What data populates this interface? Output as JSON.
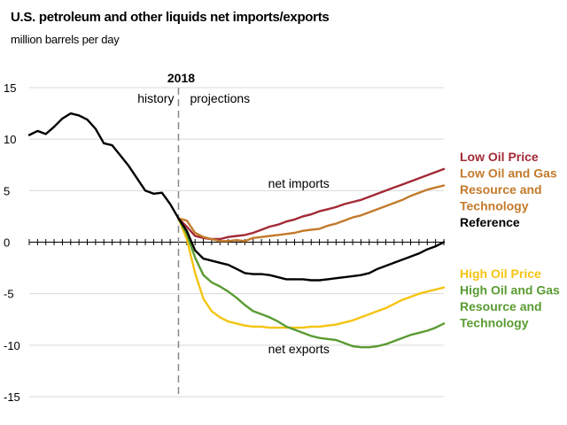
{
  "chart_data": {
    "type": "line",
    "title": "U.S. petroleum and other liquids net imports/exports",
    "subtitle": "million barrels per day",
    "xlabel": "",
    "ylabel": "",
    "xlim": [
      2000,
      2050
    ],
    "ylim": [
      -15,
      15
    ],
    "yticks": [
      15,
      10,
      5,
      0,
      -5,
      -10,
      -15
    ],
    "grid": true,
    "divider": {
      "year": 2018,
      "label": "2018",
      "left_label": "history",
      "right_label": "projections"
    },
    "annotations": [
      {
        "text": "net imports",
        "x": 2032.5,
        "y": 5.3
      },
      {
        "text": "net exports",
        "x": 2032.5,
        "y": -10.8
      }
    ],
    "legend_groups": [
      {
        "entries": [
          "Low Oil Price",
          "Low Oil and Gas Resource and Technology",
          "Reference"
        ]
      },
      {
        "entries": [
          "High Oil Price",
          "High Oil and Gas Resource and Technology"
        ]
      }
    ],
    "series": [
      {
        "name": "Reference",
        "legend": [
          "Reference"
        ],
        "color": "#000000",
        "x": [
          2000,
          2001,
          2002,
          2003,
          2004,
          2005,
          2006,
          2007,
          2008,
          2009,
          2010,
          2011,
          2012,
          2013,
          2014,
          2015,
          2016,
          2017,
          2018,
          2019,
          2020,
          2021,
          2022,
          2023,
          2024,
          2025,
          2026,
          2027,
          2028,
          2029,
          2030,
          2031,
          2032,
          2033,
          2034,
          2035,
          2036,
          2037,
          2038,
          2039,
          2040,
          2041,
          2042,
          2043,
          2044,
          2045,
          2046,
          2047,
          2048,
          2049,
          2050
        ],
        "values": [
          10.4,
          10.8,
          10.5,
          11.2,
          12.0,
          12.5,
          12.3,
          11.9,
          11.0,
          9.6,
          9.4,
          8.4,
          7.4,
          6.2,
          5.0,
          4.7,
          4.8,
          3.7,
          2.3,
          1.1,
          -0.8,
          -1.6,
          -1.8,
          -2.0,
          -2.2,
          -2.6,
          -3.0,
          -3.1,
          -3.1,
          -3.2,
          -3.4,
          -3.6,
          -3.6,
          -3.6,
          -3.7,
          -3.7,
          -3.6,
          -3.5,
          -3.4,
          -3.3,
          -3.2,
          -3.0,
          -2.6,
          -2.3,
          -2.0,
          -1.7,
          -1.4,
          -1.1,
          -0.7,
          -0.4,
          0.0
        ]
      },
      {
        "name": "Low Oil Price",
        "legend": [
          "Low Oil Price"
        ],
        "color": "#A32A36",
        "x": [
          2018,
          2019,
          2020,
          2021,
          2022,
          2023,
          2024,
          2025,
          2026,
          2027,
          2028,
          2029,
          2030,
          2031,
          2032,
          2033,
          2034,
          2035,
          2036,
          2037,
          2038,
          2039,
          2040,
          2041,
          2042,
          2043,
          2044,
          2045,
          2046,
          2047,
          2048,
          2049,
          2050
        ],
        "values": [
          2.3,
          1.5,
          0.6,
          0.4,
          0.3,
          0.3,
          0.5,
          0.6,
          0.7,
          0.9,
          1.2,
          1.5,
          1.7,
          2.0,
          2.2,
          2.5,
          2.7,
          3.0,
          3.2,
          3.4,
          3.7,
          3.9,
          4.1,
          4.4,
          4.7,
          5.0,
          5.3,
          5.6,
          5.9,
          6.2,
          6.5,
          6.8,
          7.1
        ]
      },
      {
        "name": "Low Oil and Gas Resource and Technology",
        "legend": [
          "Low Oil and Gas",
          "Resource and",
          "Technology"
        ],
        "color": "#C27A2B",
        "x": [
          2018,
          2019,
          2020,
          2021,
          2022,
          2023,
          2024,
          2025,
          2026,
          2027,
          2028,
          2029,
          2030,
          2031,
          2032,
          2033,
          2034,
          2035,
          2036,
          2037,
          2038,
          2039,
          2040,
          2041,
          2042,
          2043,
          2044,
          2045,
          2046,
          2047,
          2048,
          2049,
          2050
        ],
        "values": [
          2.3,
          2.1,
          0.9,
          0.5,
          0.3,
          0.1,
          0.1,
          0.2,
          0.1,
          0.4,
          0.5,
          0.6,
          0.7,
          0.8,
          0.9,
          1.1,
          1.2,
          1.3,
          1.6,
          1.8,
          2.1,
          2.4,
          2.6,
          2.9,
          3.2,
          3.5,
          3.8,
          4.1,
          4.5,
          4.8,
          5.1,
          5.3,
          5.5
        ]
      },
      {
        "name": "High Oil Price",
        "legend": [
          "High Oil Price"
        ],
        "color": "#F5C411",
        "x": [
          2018,
          2019,
          2020,
          2021,
          2022,
          2023,
          2024,
          2025,
          2026,
          2027,
          2028,
          2029,
          2030,
          2031,
          2032,
          2033,
          2034,
          2035,
          2036,
          2037,
          2038,
          2039,
          2040,
          2041,
          2042,
          2043,
          2044,
          2045,
          2046,
          2047,
          2048,
          2049,
          2050
        ],
        "values": [
          2.3,
          0.3,
          -3.0,
          -5.5,
          -6.7,
          -7.3,
          -7.7,
          -7.9,
          -8.1,
          -8.2,
          -8.2,
          -8.3,
          -8.3,
          -8.3,
          -8.3,
          -8.3,
          -8.2,
          -8.2,
          -8.1,
          -8.0,
          -7.8,
          -7.6,
          -7.3,
          -7.0,
          -6.7,
          -6.4,
          -6.0,
          -5.6,
          -5.3,
          -5.0,
          -4.8,
          -4.6,
          -4.4
        ]
      },
      {
        "name": "High Oil and Gas Resource and Technology",
        "legend": [
          "High Oil and Gas",
          "Resource and",
          "Technology"
        ],
        "color": "#5A9B32",
        "x": [
          2018,
          2019,
          2020,
          2021,
          2022,
          2023,
          2024,
          2025,
          2026,
          2027,
          2028,
          2029,
          2030,
          2031,
          2032,
          2033,
          2034,
          2035,
          2036,
          2037,
          2038,
          2039,
          2040,
          2041,
          2042,
          2043,
          2044,
          2045,
          2046,
          2047,
          2048,
          2049,
          2050
        ],
        "values": [
          2.3,
          0.8,
          -1.5,
          -3.2,
          -3.9,
          -4.3,
          -4.8,
          -5.4,
          -6.1,
          -6.7,
          -7.0,
          -7.3,
          -7.7,
          -8.2,
          -8.5,
          -8.8,
          -9.1,
          -9.3,
          -9.4,
          -9.5,
          -9.8,
          -10.1,
          -10.2,
          -10.2,
          -10.1,
          -9.9,
          -9.6,
          -9.3,
          -9.0,
          -8.8,
          -8.6,
          -8.3,
          -7.9
        ]
      }
    ]
  }
}
